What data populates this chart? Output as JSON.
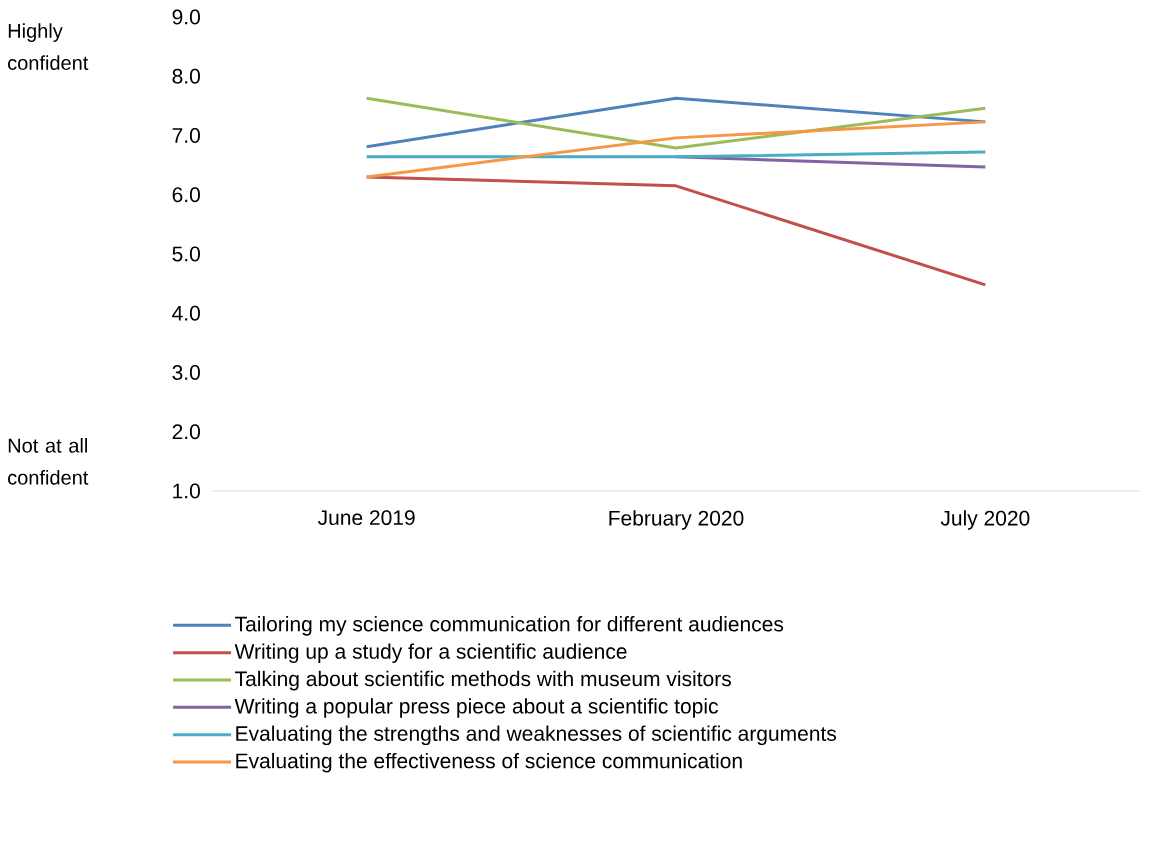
{
  "chart_data": {
    "type": "line",
    "categories": [
      "June 2019",
      "February 2020",
      "July 2020"
    ],
    "series": [
      {
        "name": "Tailoring my science communication for different audiences",
        "color": "#4f81bd",
        "values": [
          6.81,
          7.63,
          7.23
        ]
      },
      {
        "name": "Writing up a study for a scientific audience",
        "color": "#c0504d",
        "values": [
          6.3,
          6.15,
          4.48
        ]
      },
      {
        "name": "Talking about scientific methods with museum visitors",
        "color": "#9bbb59",
        "values": [
          7.63,
          6.79,
          7.46
        ]
      },
      {
        "name": "Writing a popular press piece about a scientific topic",
        "color": "#8064a2",
        "values": [
          null,
          6.64,
          6.47
        ]
      },
      {
        "name": "Evaluating the strengths and weaknesses of scientific arguments",
        "color": "#4bacc6",
        "values": [
          6.64,
          6.64,
          6.72
        ]
      },
      {
        "name": "Evaluating the effectiveness of science communication",
        "color": "#f79646",
        "values": [
          6.3,
          6.96,
          7.23
        ]
      }
    ],
    "ylim": [
      1,
      9
    ],
    "yticks": [
      {
        "value": 1,
        "label": "1.0"
      },
      {
        "value": 2,
        "label": "2.0"
      },
      {
        "value": 3,
        "label": "3.0"
      },
      {
        "value": 4,
        "label": "4.0"
      },
      {
        "value": 5,
        "label": "5.0"
      },
      {
        "value": 6,
        "label": "6.0"
      },
      {
        "value": 7,
        "label": "7.0"
      },
      {
        "value": 8,
        "label": "8.0"
      },
      {
        "value": 9,
        "label": "9.0"
      }
    ],
    "annotations": [
      "Highly confident",
      "Not at all confident"
    ],
    "grid": false,
    "legend": "bottom",
    "marker": "none",
    "line_style": "solid"
  }
}
